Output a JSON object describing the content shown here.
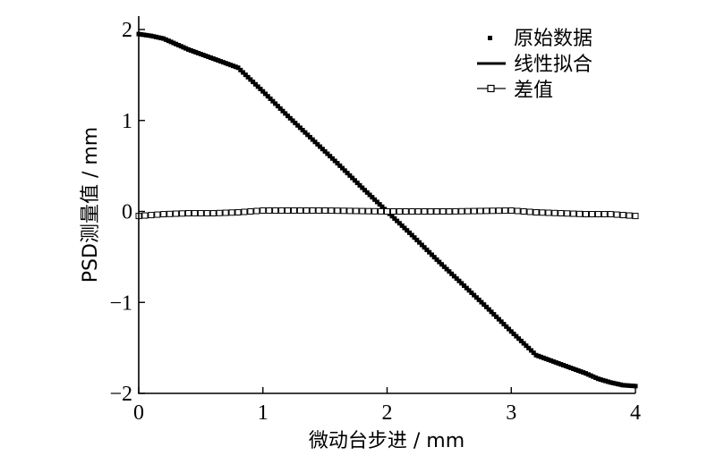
{
  "chart_data": {
    "type": "scatter",
    "xlabel": "微动台步进 / mm",
    "ylabel": "PSD测量值 / mm",
    "xlim": [
      0,
      4
    ],
    "ylim": [
      -2,
      2
    ],
    "x_ticks": [
      "0",
      "1",
      "2",
      "3",
      "4"
    ],
    "y_ticks": [
      "2",
      "1",
      "0",
      "−1",
      "−2"
    ],
    "grid": false,
    "legend_position": "top-right",
    "colors": {
      "ink": "#000000",
      "background": "#ffffff"
    },
    "series": [
      {
        "name": "原始数据",
        "style": "markers",
        "x": [
          0,
          0.1,
          0.2,
          0.3,
          0.4,
          0.5,
          0.6,
          0.7,
          0.8,
          0.9,
          1.0,
          1.2,
          1.4,
          1.6,
          1.8,
          2.0,
          2.2,
          2.4,
          2.6,
          2.8,
          3.0,
          3.1,
          3.2,
          3.3,
          3.4,
          3.5,
          3.6,
          3.7,
          3.8,
          3.9,
          4.0
        ],
        "y": [
          1.95,
          1.93,
          1.9,
          1.84,
          1.78,
          1.73,
          1.68,
          1.63,
          1.58,
          1.45,
          1.32,
          1.05,
          0.79,
          0.53,
          0.26,
          0.0,
          -0.26,
          -0.53,
          -0.79,
          -1.05,
          -1.32,
          -1.45,
          -1.58,
          -1.63,
          -1.68,
          -1.73,
          -1.78,
          -1.84,
          -1.88,
          -1.91,
          -1.92
        ]
      },
      {
        "name": "线性拟合",
        "style": "line",
        "x": [
          0.8,
          3.2
        ],
        "y": [
          1.58,
          -1.58
        ]
      },
      {
        "name": "差值",
        "style": "line-square-markers",
        "x": [
          0,
          0.2,
          0.4,
          0.6,
          0.8,
          1.0,
          1.5,
          2.0,
          2.5,
          3.0,
          3.2,
          3.4,
          3.6,
          3.8,
          4.0
        ],
        "y": [
          -0.05,
          -0.03,
          -0.02,
          -0.02,
          -0.01,
          0.01,
          0.01,
          0.0,
          0.0,
          0.01,
          -0.01,
          -0.02,
          -0.03,
          -0.03,
          -0.05
        ]
      }
    ]
  }
}
